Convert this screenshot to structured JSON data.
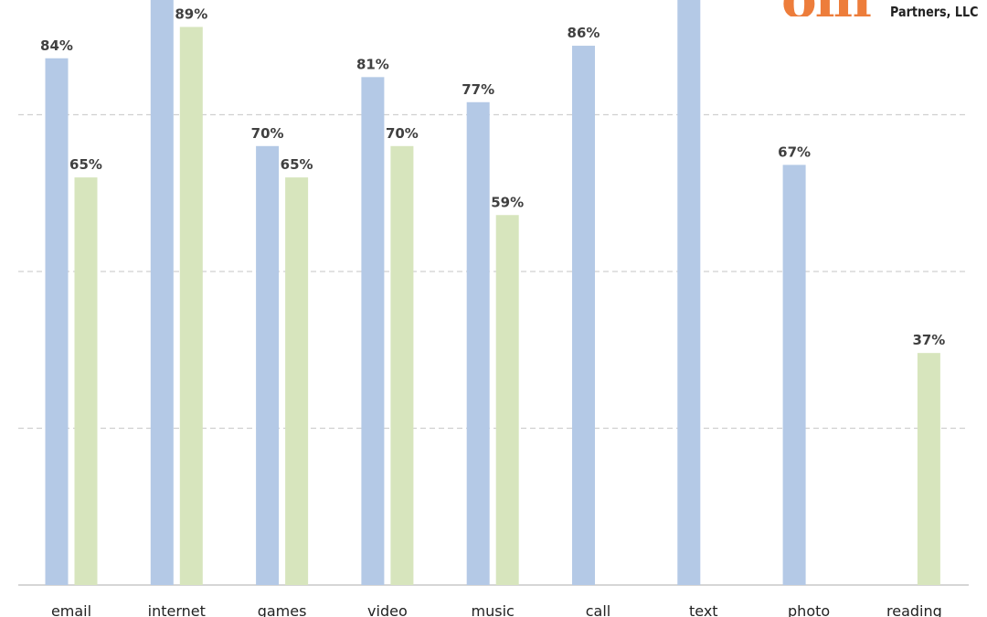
{
  "logo": {
    "text": "Partners, LLC",
    "color": "#ed7d3b"
  },
  "chart_data": {
    "type": "bar",
    "categories": [
      "email",
      "internet",
      "games",
      "video",
      "music",
      "call",
      "text",
      "photo",
      "reading"
    ],
    "series": [
      {
        "color": "#b4c9e6",
        "values": [
          84,
          null,
          70,
          81,
          77,
          86,
          null,
          67,
          null
        ],
        "labels": [
          "84%",
          "",
          "70%",
          "81%",
          "77%",
          "86%",
          "",
          "67%",
          ""
        ]
      },
      {
        "color": "#d7e5bd",
        "values": [
          65,
          89,
          65,
          70,
          59,
          null,
          null,
          null,
          37
        ],
        "labels": [
          "65%",
          "89%",
          "65%",
          "70%",
          "59%",
          "",
          "",
          "",
          "37%"
        ]
      }
    ],
    "ylim": [
      0,
      100
    ],
    "gridlines": [
      25,
      50,
      75
    ],
    "grid": true,
    "gridline_style": "dashed",
    "legend": "none"
  }
}
